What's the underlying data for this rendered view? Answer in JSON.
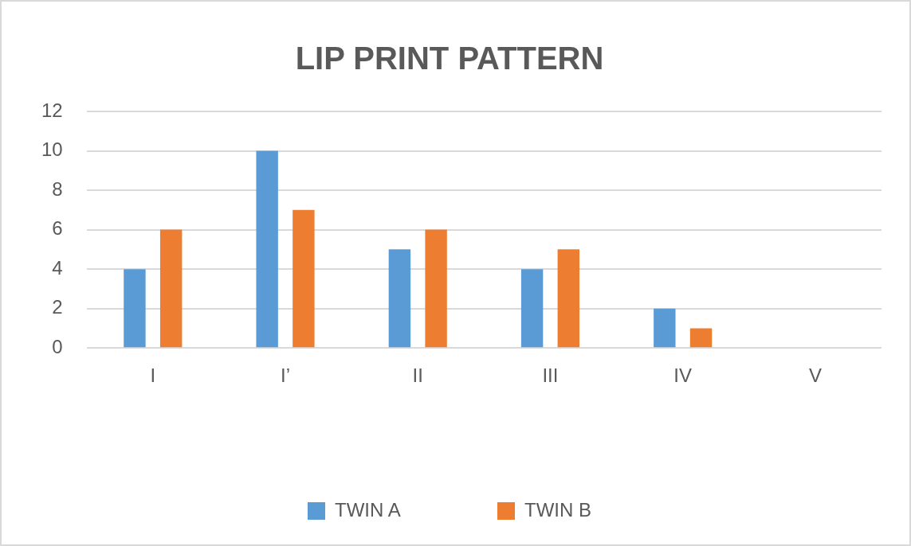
{
  "chart_data": {
    "type": "bar",
    "title": "LIP PRINT PATTERN",
    "categories": [
      "I",
      "I’",
      "II",
      "III",
      "IV",
      "V"
    ],
    "series": [
      {
        "name": "TWIN A",
        "color": "#5b9bd5",
        "values": [
          4,
          10,
          5,
          4,
          2,
          0
        ]
      },
      {
        "name": "TWIN B",
        "color": "#ed7d31",
        "values": [
          6,
          7,
          6,
          5,
          1,
          0
        ]
      }
    ],
    "ylim": [
      0,
      12
    ],
    "yticks": [
      0,
      2,
      4,
      6,
      8,
      10,
      12
    ],
    "grid": "y",
    "legend": "bottom"
  }
}
